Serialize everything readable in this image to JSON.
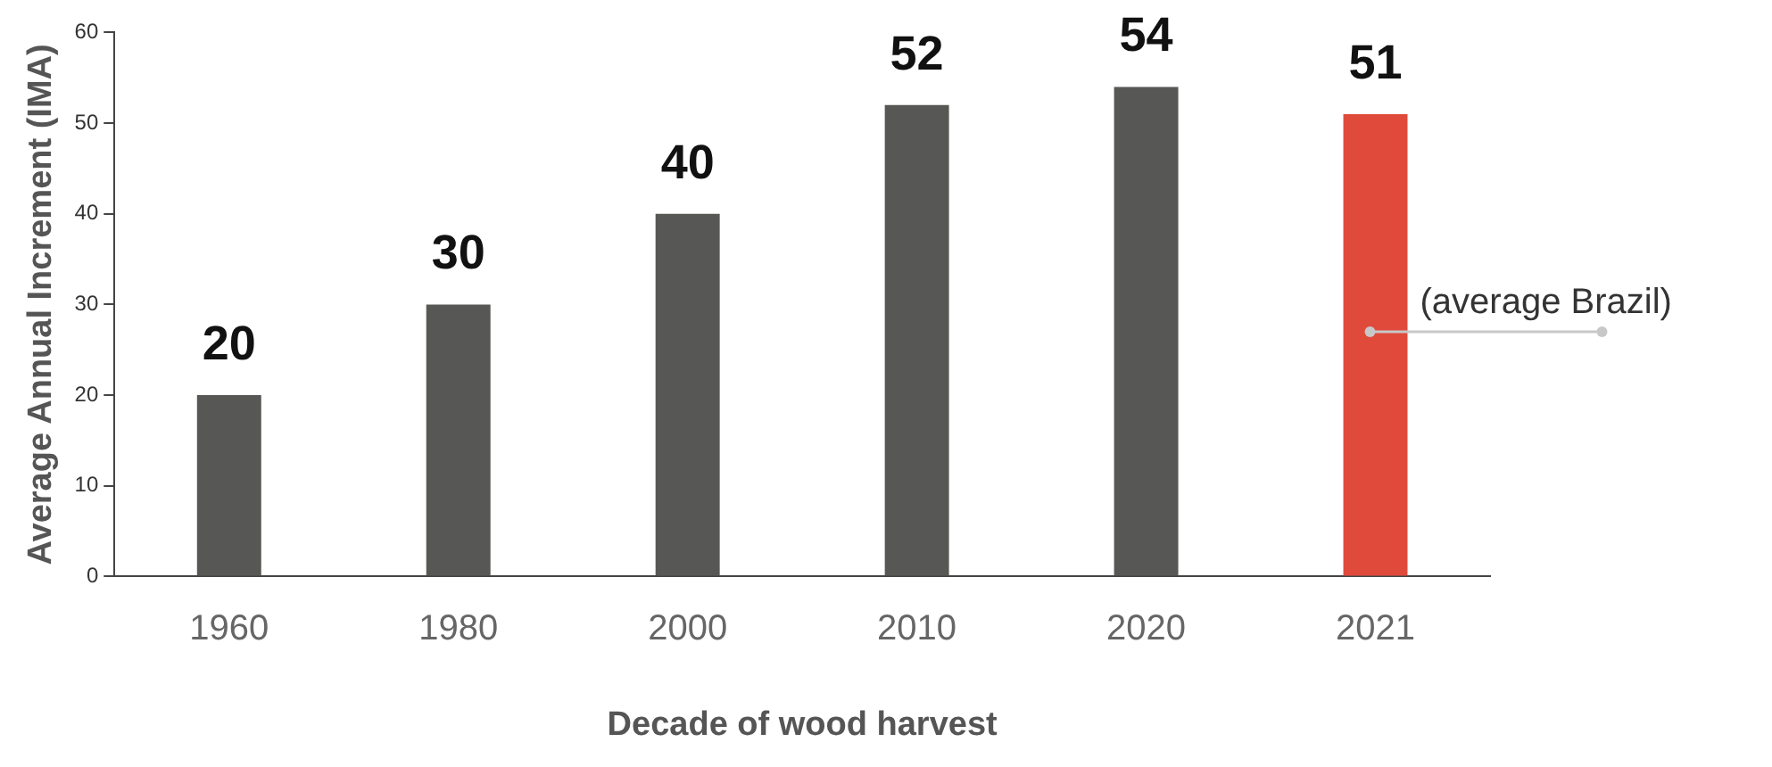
{
  "chart_data": {
    "type": "bar",
    "xlabel": "Decade of wood harvest",
    "ylabel": "Average Annual Increment (IMA)",
    "categories": [
      "1960",
      "1980",
      "2000",
      "2010",
      "2020",
      "2021"
    ],
    "values": [
      20,
      30,
      40,
      52,
      54,
      51
    ],
    "colors": [
      "#575755",
      "#575755",
      "#575755",
      "#575755",
      "#575755",
      "#e04a3b"
    ],
    "ylim": [
      0,
      60
    ],
    "yticks": [
      0,
      10,
      20,
      30,
      40,
      50,
      60
    ],
    "grid": false,
    "data_labels": true,
    "annotations": [
      "(average Brazil)"
    ]
  }
}
